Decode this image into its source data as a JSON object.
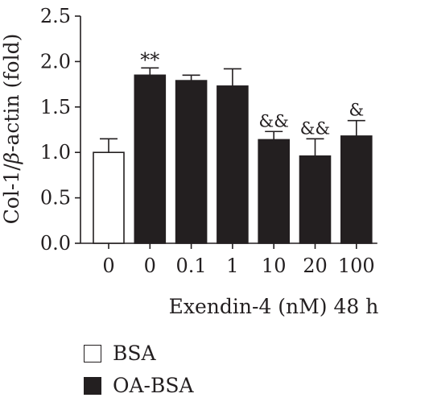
{
  "colors": {
    "stroke": "#231f20",
    "bsa_fill": "#ffffff",
    "oa_bsa_fill": "#231f20"
  },
  "chart_data": {
    "type": "bar",
    "title": "",
    "ylabel": "Col-1/β-actin (fold)",
    "ylabel_parts": {
      "before": "Col-1/",
      "italic": "β",
      "after": "-actin (fold)"
    },
    "xlabel": "Exendin-4 (nM) 48 h",
    "ylim": [
      0,
      2.5
    ],
    "yticks": [
      {
        "value": 0.0,
        "label": "0.0"
      },
      {
        "value": 0.5,
        "label": "0.5"
      },
      {
        "value": 1.0,
        "label": "1.0"
      },
      {
        "value": 1.5,
        "label": "1.5"
      },
      {
        "value": 2.0,
        "label": "2.0"
      },
      {
        "value": 2.5,
        "label": "2.5"
      }
    ],
    "grid": false,
    "legend_position": "bottom-left",
    "series_legend": [
      {
        "name": "BSA",
        "color": "#ffffff"
      },
      {
        "name": "OA-BSA",
        "color": "#231f20"
      }
    ],
    "bars": [
      {
        "category": "0",
        "series": "BSA",
        "value": 1.0,
        "error": 0.15,
        "annotation": ""
      },
      {
        "category": "0",
        "series": "OA-BSA",
        "value": 1.85,
        "error": 0.08,
        "annotation": "**"
      },
      {
        "category": "0.1",
        "series": "OA-BSA",
        "value": 1.79,
        "error": 0.06,
        "annotation": ""
      },
      {
        "category": "1",
        "series": "OA-BSA",
        "value": 1.73,
        "error": 0.19,
        "annotation": ""
      },
      {
        "category": "10",
        "series": "OA-BSA",
        "value": 1.14,
        "error": 0.09,
        "annotation": "&&"
      },
      {
        "category": "20",
        "series": "OA-BSA",
        "value": 0.96,
        "error": 0.19,
        "annotation": "&&"
      },
      {
        "category": "100",
        "series": "OA-BSA",
        "value": 1.18,
        "error": 0.17,
        "annotation": "&"
      }
    ]
  }
}
